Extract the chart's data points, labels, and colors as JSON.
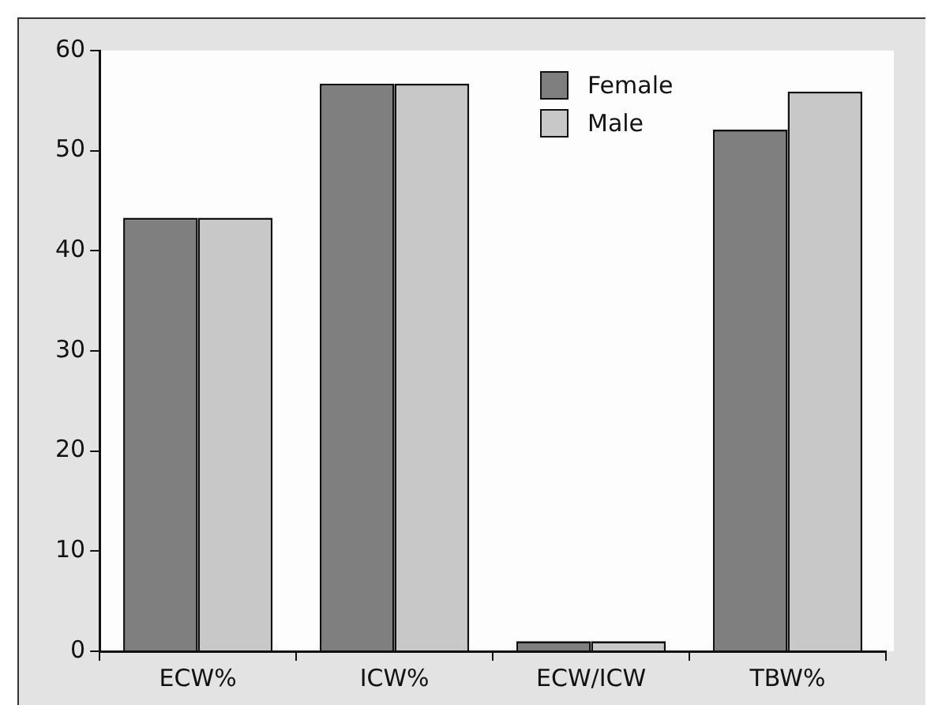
{
  "chart_data": {
    "type": "bar",
    "categories": [
      "ECW%",
      "ICW%",
      "ECW/ICW",
      "TBW%"
    ],
    "series": [
      {
        "name": "Female",
        "color": "#7f7f7f",
        "values": [
          43.3,
          56.7,
          1.0,
          52.1
        ]
      },
      {
        "name": "Male",
        "color": "#c8c8c8",
        "values": [
          43.3,
          56.7,
          1.0,
          55.9
        ]
      }
    ],
    "ylim": [
      0,
      60
    ],
    "yticks": [
      0,
      10,
      20,
      30,
      40,
      50,
      60
    ],
    "grid": false,
    "legend": "top right"
  }
}
